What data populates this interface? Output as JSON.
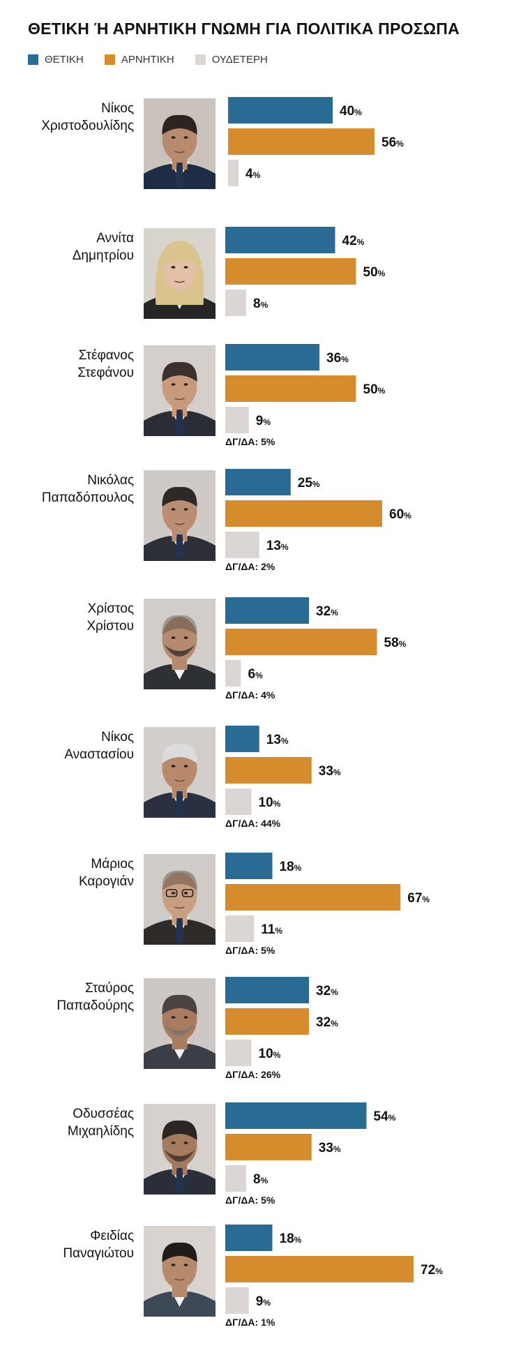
{
  "title": "ΘΕΤΙΚΗ Ή ΑΡΝΗΤΙΚΗ ΓΝΩΜΗ ΓΙΑ ΠΟΛΙΤΙΚΑ ΠΡΟΣΩΠΑ",
  "legend": [
    {
      "label": "ΘΕΤΙΚΗ",
      "color": "#2a6b93"
    },
    {
      "label": "ΑΡΝΗΤΙΚΗ",
      "color": "#d68b2c"
    },
    {
      "label": "ΟΥΔΕΤΕΡΗ",
      "color": "#dbd6d3"
    }
  ],
  "chart_data": {
    "type": "bar",
    "orientation": "horizontal",
    "value_suffix": "%",
    "dk_label": "ΔΓ/ΔΑ:",
    "series_colors": {
      "positive": "#2a6b93",
      "negative": "#d68b2c",
      "neutral": "#dbd6d3"
    },
    "people": [
      {
        "name_line1": "Νίκος",
        "name_line2": "Χριστοδουλίδης",
        "positive": 40,
        "negative": 56,
        "neutral": 4,
        "dk": null
      },
      {
        "name_line1": "Αννίτα",
        "name_line2": "Δημητρίου",
        "positive": 42,
        "negative": 50,
        "neutral": 8,
        "dk": null
      },
      {
        "name_line1": "Στέφανος",
        "name_line2": "Στεφάνου",
        "positive": 36,
        "negative": 50,
        "neutral": 9,
        "dk": 5
      },
      {
        "name_line1": "Νικόλας",
        "name_line2": "Παπαδόπουλος",
        "positive": 25,
        "negative": 60,
        "neutral": 13,
        "dk": 2
      },
      {
        "name_line1": "Χρίστος",
        "name_line2": "Χρίστου",
        "positive": 32,
        "negative": 58,
        "neutral": 6,
        "dk": 4
      },
      {
        "name_line1": "Νίκος",
        "name_line2": "Αναστασίου",
        "positive": 13,
        "negative": 33,
        "neutral": 10,
        "dk": 44
      },
      {
        "name_line1": "Μάριος",
        "name_line2": "Καρογιάν",
        "positive": 18,
        "negative": 67,
        "neutral": 11,
        "dk": 5
      },
      {
        "name_line1": "Σταύρος",
        "name_line2": "Παπαδούρης",
        "positive": 32,
        "negative": 32,
        "neutral": 10,
        "dk": 26
      },
      {
        "name_line1": "Οδυσσέας",
        "name_line2": "Μιχαηλίδης",
        "positive": 54,
        "negative": 33,
        "neutral": 8,
        "dk": 5
      },
      {
        "name_line1": "Φειδίας",
        "name_line2": "Παναγιώτου",
        "positive": 18,
        "negative": 72,
        "neutral": 9,
        "dk": 1
      }
    ]
  }
}
